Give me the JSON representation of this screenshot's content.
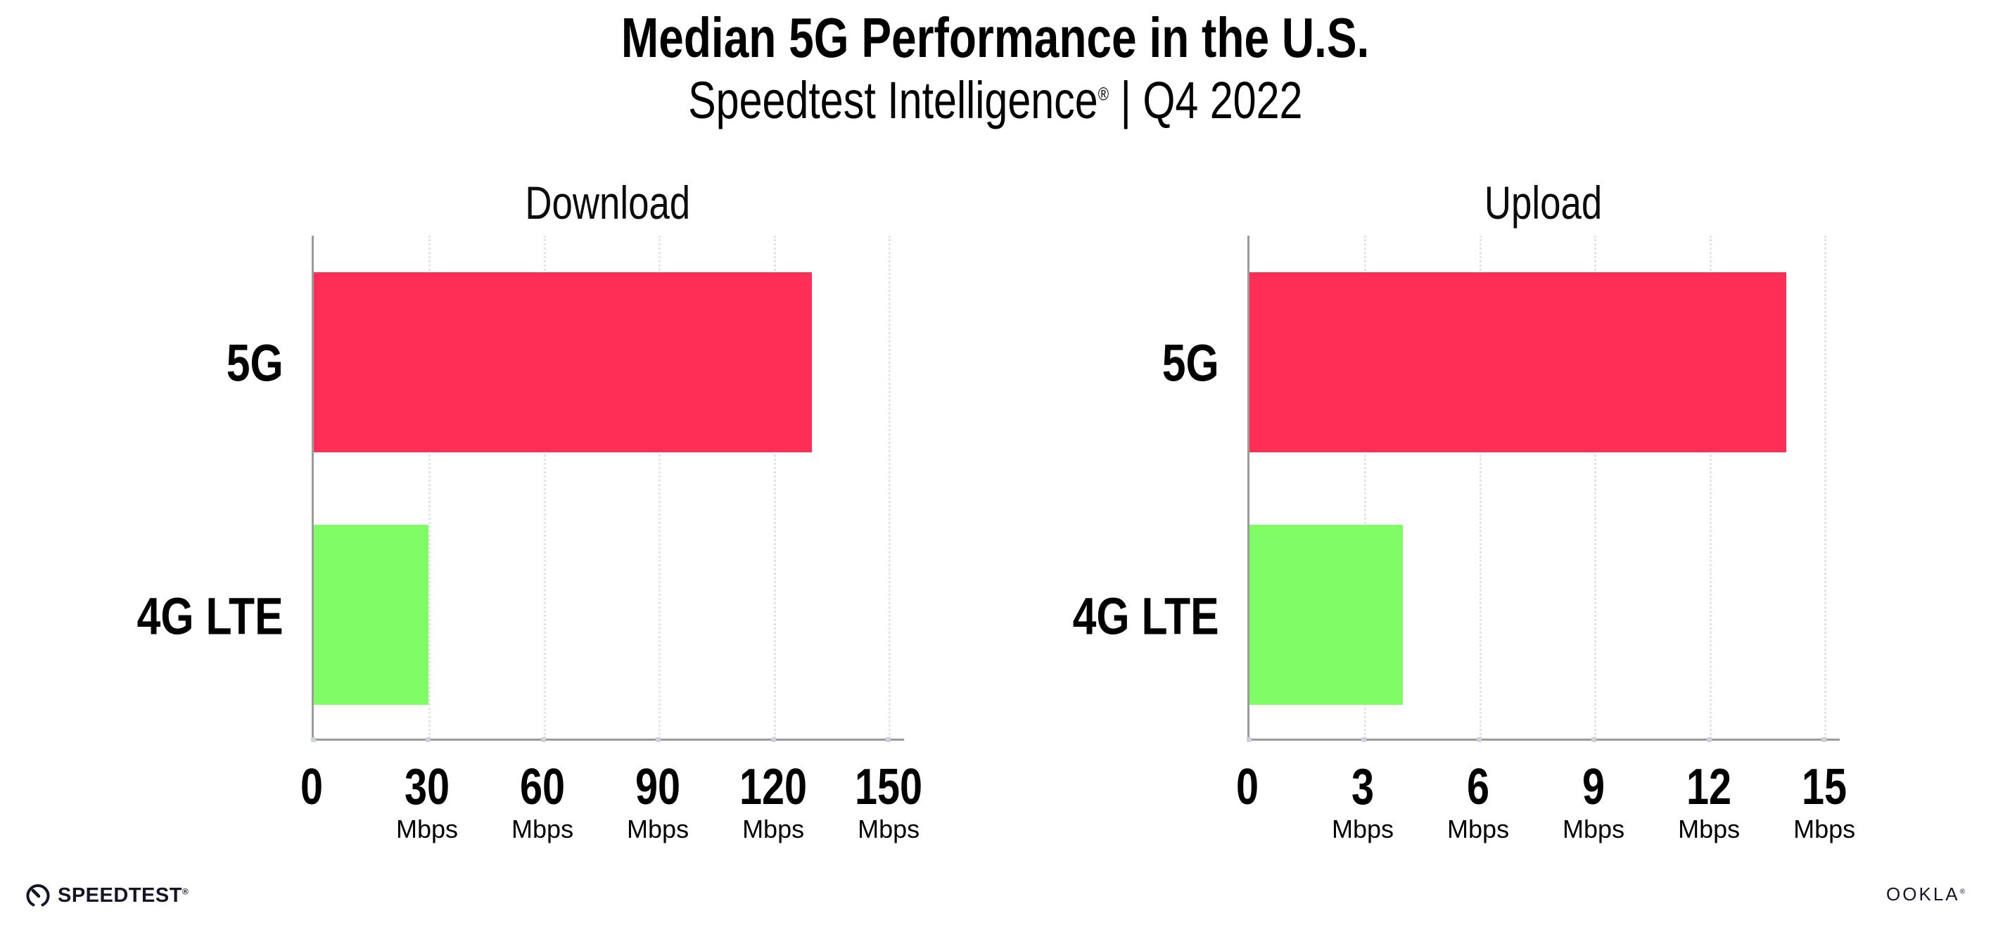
{
  "header": {
    "title": "Median 5G Performance in the U.S.",
    "subtitle_brand": "Speedtest Intelligence",
    "subtitle_reg": "®",
    "subtitle_rest": " | Q4 2022"
  },
  "chart_data": [
    {
      "type": "bar",
      "orientation": "horizontal",
      "title": "Download",
      "categories": [
        "5G",
        "4G LTE"
      ],
      "values": [
        130,
        30
      ],
      "unit": "Mbps",
      "ticks": [
        0,
        30,
        60,
        90,
        120,
        150
      ],
      "xlim": [
        0,
        154
      ],
      "grid": "dotted-vertical",
      "legend": "none",
      "bar_colors": [
        "#ff2e56",
        "#80fc66"
      ]
    },
    {
      "type": "bar",
      "orientation": "horizontal",
      "title": "Upload",
      "categories": [
        "5G",
        "4G LTE"
      ],
      "values": [
        14,
        4
      ],
      "unit": "Mbps",
      "ticks": [
        0,
        3,
        6,
        9,
        12,
        15
      ],
      "xlim": [
        0,
        15.4
      ],
      "grid": "dotted-vertical",
      "legend": "none",
      "bar_colors": [
        "#ff2e56",
        "#80fc66"
      ]
    }
  ],
  "footer": {
    "speedtest_label": "SPEEDTEST",
    "speedtest_mark": "®",
    "ookla_label": "OOKLA",
    "ookla_mark": "®"
  },
  "colors": {
    "bar_red": "#ff2e56",
    "bar_green": "#80fc66",
    "axis": "#9b9b9b",
    "gridline": "#e3e3ee",
    "text": "#000000"
  }
}
